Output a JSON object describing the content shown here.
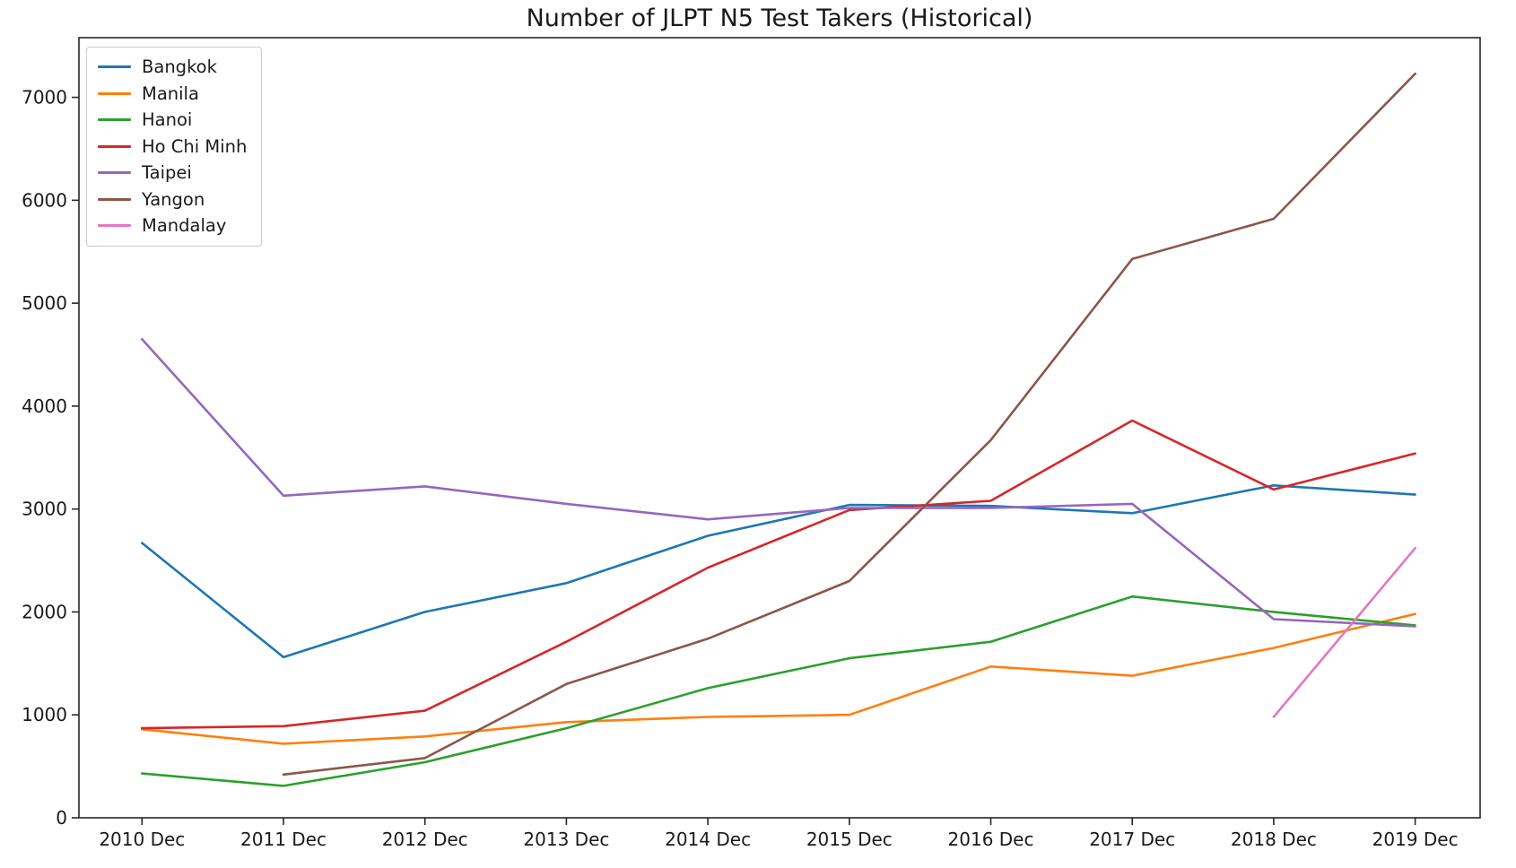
{
  "figure": {
    "background": "#ffffff"
  },
  "chart_data": {
    "type": "line",
    "title": "Number of JLPT N5 Test Takers (Historical)",
    "categories": [
      "2010 Dec",
      "2011 Dec",
      "2012 Dec",
      "2013 Dec",
      "2014 Dec",
      "2015 Dec",
      "2016 Dec",
      "2017 Dec",
      "2018 Dec",
      "2019 Dec"
    ],
    "series": [
      {
        "name": "Bangkok",
        "color": "#1f77b4",
        "values": [
          2670,
          1560,
          2000,
          2280,
          2740,
          3040,
          3030,
          2960,
          3230,
          3140
        ]
      },
      {
        "name": "Manila",
        "color": "#ff7f0e",
        "values": [
          860,
          720,
          790,
          930,
          980,
          1000,
          1470,
          1380,
          1650,
          1980
        ]
      },
      {
        "name": "Hanoi",
        "color": "#2ca02c",
        "values": [
          430,
          310,
          540,
          870,
          1260,
          1550,
          1710,
          2150,
          2000,
          1870
        ]
      },
      {
        "name": "Ho Chi Minh",
        "color": "#d62728",
        "values": [
          870,
          890,
          1040,
          1710,
          2430,
          2990,
          3080,
          3860,
          3190,
          3540
        ]
      },
      {
        "name": "Taipei",
        "color": "#9467bd",
        "values": [
          4650,
          3130,
          3220,
          3050,
          2900,
          3010,
          3010,
          3050,
          1930,
          1860
        ]
      },
      {
        "name": "Yangon",
        "color": "#8c564b",
        "values": [
          null,
          420,
          580,
          1300,
          1740,
          2300,
          3670,
          5430,
          5820,
          7230
        ]
      },
      {
        "name": "Mandalay",
        "color": "#e377c2",
        "values": [
          null,
          null,
          null,
          null,
          null,
          null,
          null,
          null,
          980,
          2620
        ]
      }
    ],
    "xlabel": "",
    "ylabel": "",
    "y_ticks": [
      0,
      1000,
      2000,
      3000,
      4000,
      5000,
      6000,
      7000
    ],
    "ylim": [
      0,
      7580
    ],
    "grid": false,
    "legend_position": "upper left",
    "axis_color": "#262626",
    "text_color": "#1a1a1a",
    "legend_border_color": "#cccccc"
  }
}
